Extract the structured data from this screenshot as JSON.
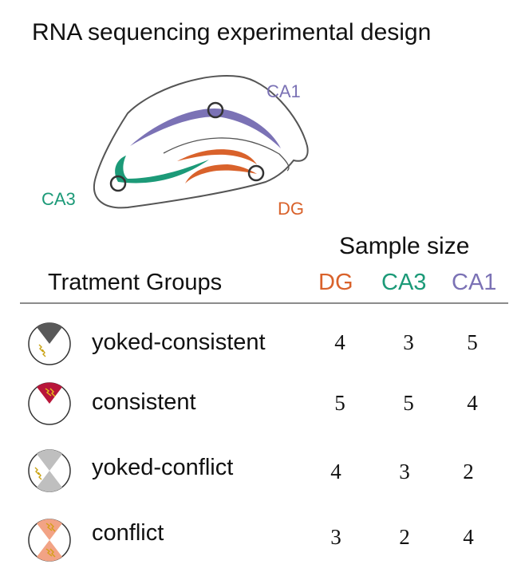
{
  "title": "RNA sequencing experimental design",
  "diagram": {
    "regions": [
      {
        "id": "CA1",
        "label": "CA1",
        "color": "#7b72b5"
      },
      {
        "id": "CA3",
        "label": "CA3",
        "color": "#1c9a78"
      },
      {
        "id": "DG",
        "label": "DG",
        "color": "#d9622b"
      }
    ]
  },
  "table": {
    "sample_size_heading": "Sample size",
    "groups_heading": "Tratment Groups",
    "columns": [
      {
        "label": "DG",
        "color": "#d9622b"
      },
      {
        "label": "CA3",
        "color": "#1c9a78"
      },
      {
        "label": "CA1",
        "color": "#7b72b5"
      }
    ],
    "rows": [
      {
        "label": "yoked-consistent",
        "icon": "yoked-consistent-icon",
        "values": [
          "4",
          "3",
          "5"
        ]
      },
      {
        "label": "consistent",
        "icon": "consistent-icon",
        "values": [
          "5",
          "5",
          "4"
        ]
      },
      {
        "label": "yoked-conflict",
        "icon": "yoked-conflict-icon",
        "values": [
          "4",
          "3",
          "2"
        ]
      },
      {
        "label": "conflict",
        "icon": "conflict-icon",
        "values": [
          "3",
          "2",
          "4"
        ]
      }
    ]
  }
}
